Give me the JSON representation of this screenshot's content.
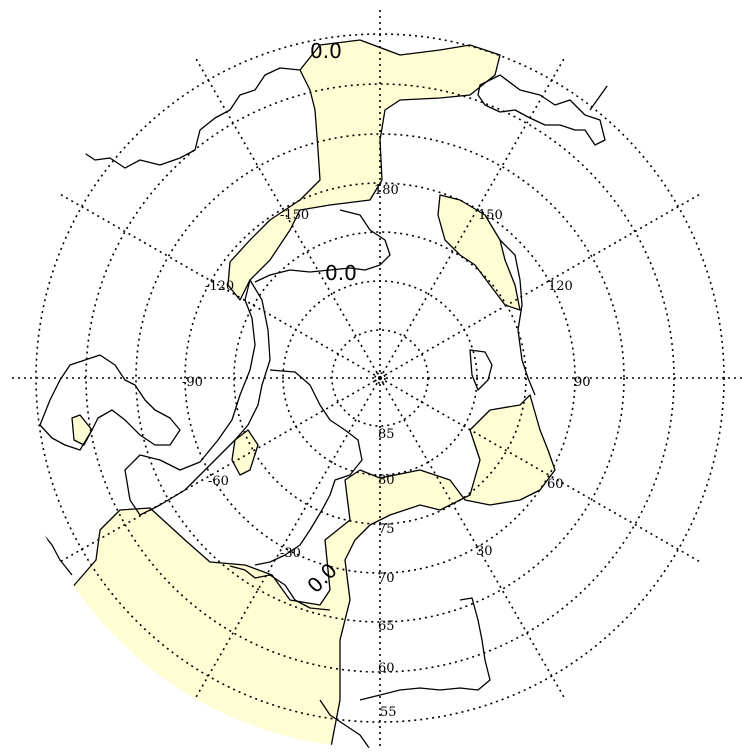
{
  "map": {
    "projection": "north-polar-stereographic",
    "orientation": "flipped",
    "fill_color": "#fffdd4",
    "line_color": "#000000",
    "longitude_labels": [
      "180",
      "150",
      "120",
      "90",
      "60",
      "30",
      "-30",
      "-60",
      "-90",
      "-120",
      "-150"
    ],
    "latitude_labels": [
      "85",
      "80",
      "75",
      "70",
      "65",
      "60",
      "55"
    ],
    "contour_labels": [
      "0.0",
      "0.0",
      "0.0"
    ]
  }
}
